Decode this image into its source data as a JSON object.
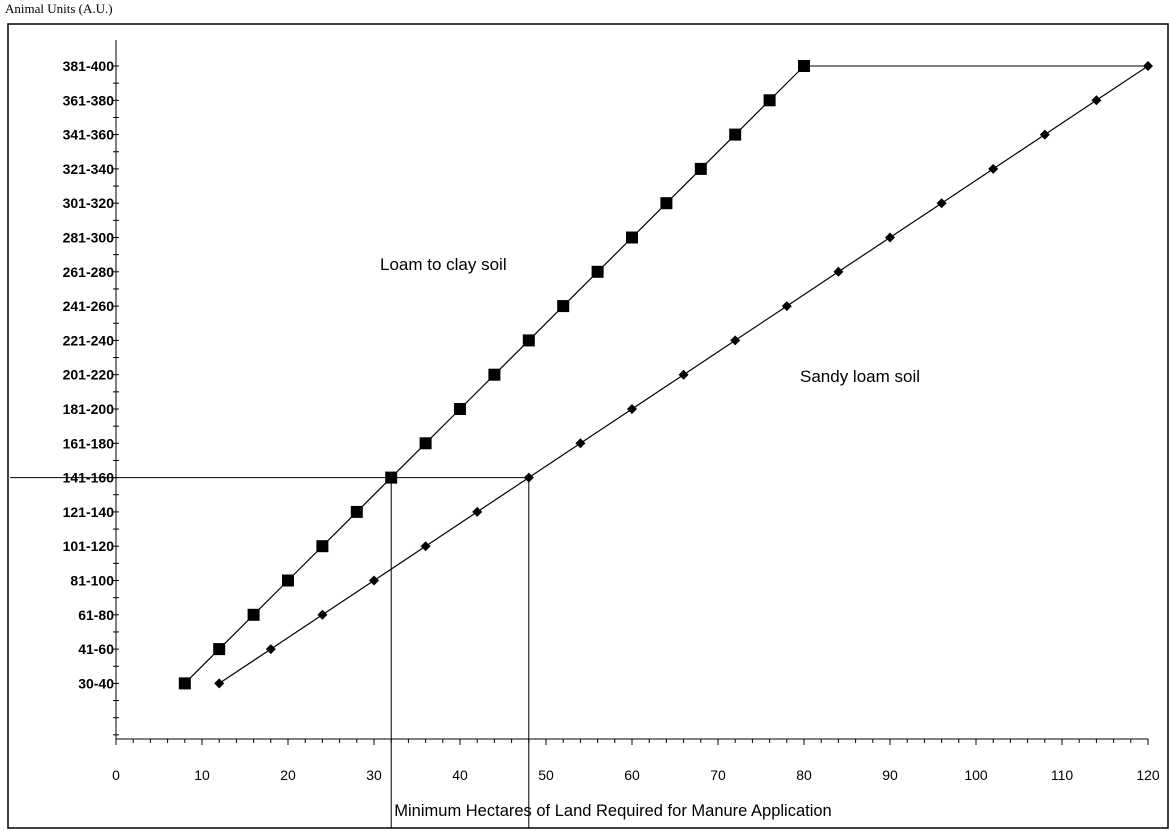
{
  "chart_data": {
    "type": "line",
    "ylabel": "Animal Units (A.U.)",
    "xlabel": "Minimum Hectares of Land Required for Manure Application",
    "xlim": [
      0,
      120
    ],
    "x_ticks": [
      "0",
      "10",
      "20",
      "30",
      "40",
      "50",
      "60",
      "70",
      "80",
      "90",
      "100",
      "110",
      "120"
    ],
    "y_categories": [
      "30-40",
      "41-60",
      "61-80",
      "81-100",
      "101-120",
      "121-140",
      "141-160",
      "161-180",
      "181-200",
      "201-220",
      "221-240",
      "241-260",
      "261-280",
      "281-300",
      "301-320",
      "321-340",
      "341-360",
      "361-380",
      "381-400"
    ],
    "grid": false,
    "series": [
      {
        "name": "Loam to clay soil",
        "marker": "square",
        "color": "#000000",
        "points": [
          [
            8,
            "30-40"
          ],
          [
            12,
            "41-60"
          ],
          [
            16,
            "61-80"
          ],
          [
            20,
            "81-100"
          ],
          [
            24,
            "101-120"
          ],
          [
            28,
            "121-140"
          ],
          [
            32,
            "141-160"
          ],
          [
            36,
            "161-180"
          ],
          [
            40,
            "181-200"
          ],
          [
            44,
            "201-220"
          ],
          [
            48,
            "221-240"
          ],
          [
            52,
            "241-260"
          ],
          [
            56,
            "261-280"
          ],
          [
            60,
            "281-300"
          ],
          [
            64,
            "301-320"
          ],
          [
            68,
            "321-340"
          ],
          [
            72,
            "341-360"
          ],
          [
            76,
            "361-380"
          ],
          [
            80,
            "381-400"
          ]
        ]
      },
      {
        "name": "Sandy loam soil",
        "marker": "diamond",
        "color": "#000000",
        "points": [
          [
            12,
            "30-40"
          ],
          [
            18,
            "41-60"
          ],
          [
            24,
            "61-80"
          ],
          [
            30,
            "81-100"
          ],
          [
            36,
            "101-120"
          ],
          [
            42,
            "121-140"
          ],
          [
            48,
            "141-160"
          ],
          [
            54,
            "161-180"
          ],
          [
            60,
            "181-200"
          ],
          [
            66,
            "201-220"
          ],
          [
            72,
            "221-240"
          ],
          [
            78,
            "241-260"
          ],
          [
            84,
            "261-280"
          ],
          [
            90,
            "281-300"
          ],
          [
            96,
            "301-320"
          ],
          [
            102,
            "321-340"
          ],
          [
            108,
            "341-360"
          ],
          [
            114,
            "361-380"
          ],
          [
            120,
            "381-400"
          ]
        ]
      }
    ],
    "reference_lines": [
      {
        "type": "horizontal",
        "y": "141-160",
        "x_from": 0,
        "x_to": 48
      },
      {
        "type": "vertical",
        "x": 32,
        "y_to": "141-160"
      },
      {
        "type": "vertical",
        "x": 48,
        "y_to": "141-160"
      },
      {
        "type": "horizontal",
        "y": "381-400",
        "x_from": 80,
        "x_to": 120
      }
    ]
  }
}
